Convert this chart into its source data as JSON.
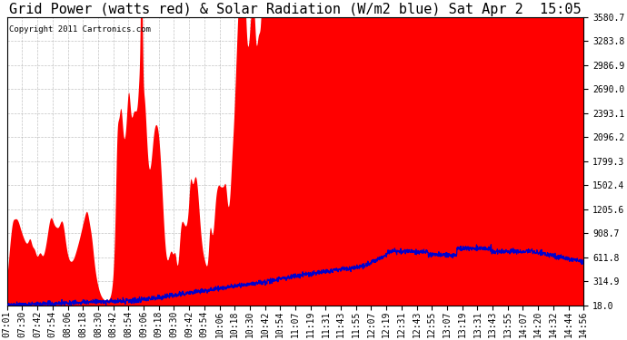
{
  "title": "Grid Power (watts red) & Solar Radiation (W/m2 blue) Sat Apr 2  15:05",
  "copyright": "Copyright 2011 Cartronics.com",
  "yticks": [
    18.0,
    314.9,
    611.8,
    908.7,
    1205.6,
    1502.4,
    1799.3,
    2096.2,
    2393.1,
    2690.0,
    2986.9,
    3283.8,
    3580.7
  ],
  "ymin": 18.0,
  "ymax": 3580.7,
  "bg_color": "#ffffff",
  "plot_bg_color": "#ffffff",
  "grid_color": "#aaaaaa",
  "red_color": "#ff0000",
  "blue_color": "#0000cc",
  "title_fontsize": 11,
  "tick_fontsize": 7,
  "copyright_fontsize": 6.5
}
